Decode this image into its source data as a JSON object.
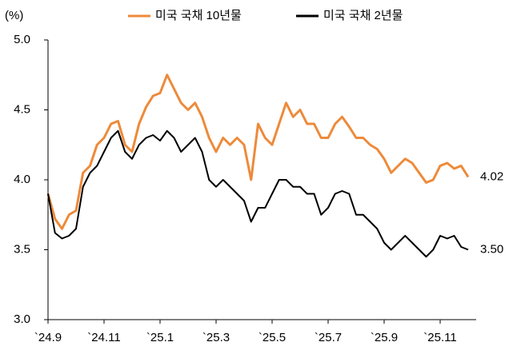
{
  "chart_data": {
    "type": "line",
    "y_unit": "(%)",
    "categories": [
      "`24.9",
      null,
      null,
      null,
      null,
      null,
      null,
      null,
      "`24.11",
      null,
      null,
      null,
      null,
      null,
      null,
      null,
      "`25.1",
      null,
      null,
      null,
      null,
      null,
      null,
      null,
      "`25.3",
      null,
      null,
      null,
      null,
      null,
      null,
      null,
      "`25.5",
      null,
      null,
      null,
      null,
      null,
      null,
      null,
      "`25.7",
      null,
      null,
      null,
      null,
      null,
      null,
      null,
      "`25.9",
      null,
      null,
      null,
      null,
      null,
      null,
      null,
      "`25.11",
      null,
      null,
      null,
      null
    ],
    "series": [
      {
        "name": "미국 국채 10년물",
        "color": "#ed8a3a",
        "values": [
          3.9,
          3.72,
          3.65,
          3.75,
          3.78,
          4.05,
          4.1,
          4.25,
          4.3,
          4.4,
          4.42,
          4.25,
          4.2,
          4.4,
          4.52,
          4.6,
          4.62,
          4.75,
          4.65,
          4.55,
          4.5,
          4.55,
          4.45,
          4.3,
          4.2,
          4.3,
          4.25,
          4.3,
          4.25,
          4.0,
          4.4,
          4.3,
          4.25,
          4.4,
          4.55,
          4.45,
          4.5,
          4.4,
          4.4,
          4.3,
          4.3,
          4.4,
          4.45,
          4.38,
          4.3,
          4.3,
          4.25,
          4.22,
          4.15,
          4.05,
          4.1,
          4.15,
          4.12,
          4.05,
          3.98,
          4.0,
          4.1,
          4.12,
          4.08,
          4.1,
          4.02
        ],
        "value_labels": [
          null,
          null,
          null,
          null,
          null,
          null,
          null,
          null,
          null,
          null,
          null,
          null,
          null,
          null,
          null,
          null,
          null,
          null,
          null,
          null,
          null,
          null,
          null,
          null,
          null,
          null,
          null,
          null,
          null,
          null,
          null,
          null,
          null,
          null,
          null,
          null,
          null,
          null,
          null,
          null,
          null,
          null,
          null,
          null,
          null,
          null,
          null,
          null,
          null,
          null,
          null,
          null,
          null,
          null,
          null,
          null,
          null,
          null,
          null,
          null,
          "4.02"
        ]
      },
      {
        "name": "미국 국채 2년물",
        "color": "#000000",
        "values": [
          3.9,
          3.62,
          3.58,
          3.6,
          3.65,
          3.95,
          4.05,
          4.1,
          4.2,
          4.3,
          4.35,
          4.2,
          4.15,
          4.25,
          4.3,
          4.32,
          4.28,
          4.35,
          4.3,
          4.2,
          4.25,
          4.3,
          4.2,
          4.0,
          3.95,
          4.0,
          3.95,
          3.9,
          3.85,
          3.7,
          3.8,
          3.8,
          3.9,
          4.0,
          4.0,
          3.95,
          3.95,
          3.9,
          3.9,
          3.75,
          3.8,
          3.9,
          3.92,
          3.9,
          3.75,
          3.75,
          3.7,
          3.65,
          3.55,
          3.5,
          3.55,
          3.6,
          3.55,
          3.5,
          3.45,
          3.5,
          3.6,
          3.58,
          3.6,
          3.52,
          3.5
        ],
        "value_labels": [
          null,
          null,
          null,
          null,
          null,
          null,
          null,
          null,
          null,
          null,
          null,
          null,
          null,
          null,
          null,
          null,
          null,
          null,
          null,
          null,
          null,
          null,
          null,
          null,
          null,
          null,
          null,
          null,
          null,
          null,
          null,
          null,
          null,
          null,
          null,
          null,
          null,
          null,
          null,
          null,
          null,
          null,
          null,
          null,
          null,
          null,
          null,
          null,
          null,
          null,
          null,
          null,
          null,
          null,
          null,
          null,
          null,
          null,
          null,
          null,
          "3.50"
        ]
      }
    ],
    "ylim": [
      3.0,
      5.0
    ],
    "yticks": [
      {
        "value": 3.0,
        "label": "3.0"
      },
      3.5,
      {
        "value": 4.0,
        "label": "4.0"
      },
      4.5,
      {
        "value": 5.0,
        "label": "5.0"
      }
    ],
    "grid": false
  }
}
